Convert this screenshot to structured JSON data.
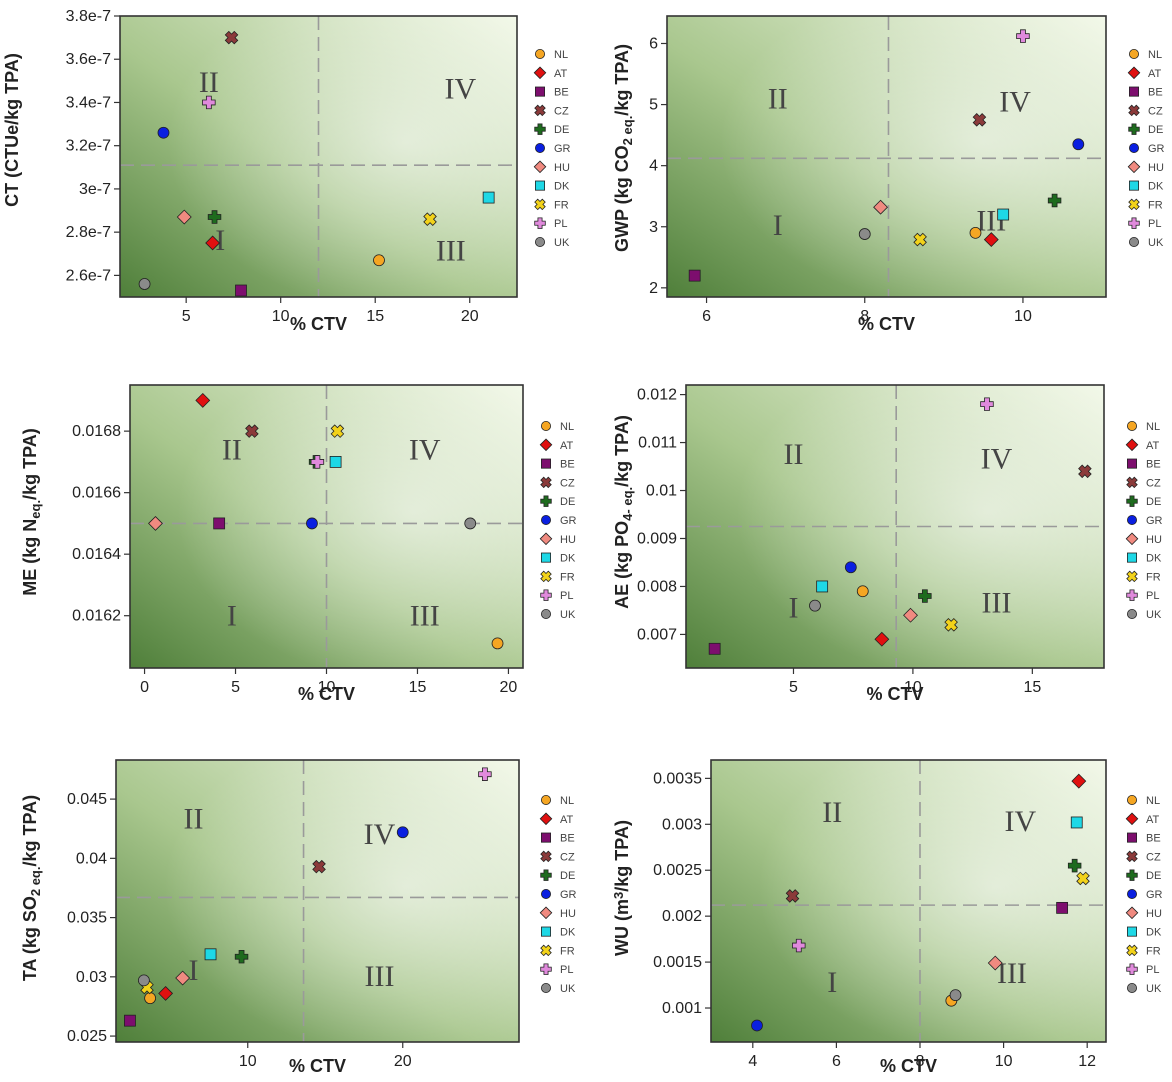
{
  "legend": [
    {
      "code": "NL",
      "color": "#F5A623",
      "shape": "circle"
    },
    {
      "code": "AT",
      "color": "#E01010",
      "shape": "diamond"
    },
    {
      "code": "BE",
      "color": "#7D0E6E",
      "shape": "square"
    },
    {
      "code": "CZ",
      "color": "#8B3A3A",
      "shape": "xcross"
    },
    {
      "code": "DE",
      "color": "#1E6B1E",
      "shape": "plus"
    },
    {
      "code": "GR",
      "color": "#0A1FE0",
      "shape": "circle"
    },
    {
      "code": "HU",
      "color": "#F08A80",
      "shape": "diamond"
    },
    {
      "code": "DK",
      "color": "#1ED8E6",
      "shape": "square"
    },
    {
      "code": "FR",
      "color": "#F2D21A",
      "shape": "xcross"
    },
    {
      "code": "PL",
      "color": "#E08ADC",
      "shape": "plus"
    },
    {
      "code": "UK",
      "color": "#8A8A8A",
      "shape": "circle"
    }
  ],
  "chart_data": [
    {
      "type": "scatter",
      "xlabel": "% CTV",
      "ylabel": "CT (CTUe/kg TPA)",
      "xlim": [
        1.5,
        22.5
      ],
      "ylim": [
        2.5e-07,
        3.8e-07
      ],
      "xticks": [
        5,
        10,
        15,
        20
      ],
      "xtick_labels": [
        "5",
        "10",
        "15",
        "20"
      ],
      "yticks": [
        2.6e-07,
        2.8e-07,
        3e-07,
        3.2e-07,
        3.4e-07,
        3.6e-07,
        3.8e-07
      ],
      "ytick_labels": [
        "2.6e-7",
        "2.8e-7",
        "3e-7",
        "3.2e-7",
        "3.4e-7",
        "3.6e-7",
        "3.8e-7"
      ],
      "vline": 12.0,
      "hline": 3.11e-07,
      "quadrant_labels": [
        {
          "text": "II",
          "x": 6.2,
          "y": 3.48e-07
        },
        {
          "text": "IV",
          "x": 19.5,
          "y": 3.45e-07
        },
        {
          "text": "I",
          "x": 6.8,
          "y": 2.75e-07
        },
        {
          "text": "III",
          "x": 19.0,
          "y": 2.7e-07
        }
      ],
      "points": [
        {
          "code": "NL",
          "x": 15.2,
          "y": 2.67e-07
        },
        {
          "code": "AT",
          "x": 6.4,
          "y": 2.75e-07
        },
        {
          "code": "BE",
          "x": 7.9,
          "y": 2.53e-07
        },
        {
          "code": "CZ",
          "x": 7.4,
          "y": 3.7e-07
        },
        {
          "code": "DE",
          "x": 6.5,
          "y": 2.87e-07
        },
        {
          "code": "GR",
          "x": 3.8,
          "y": 3.26e-07
        },
        {
          "code": "HU",
          "x": 4.9,
          "y": 2.87e-07
        },
        {
          "code": "DK",
          "x": 21.0,
          "y": 2.96e-07
        },
        {
          "code": "FR",
          "x": 17.9,
          "y": 2.86e-07
        },
        {
          "code": "PL",
          "x": 6.2,
          "y": 3.4e-07
        },
        {
          "code": "UK",
          "x": 2.8,
          "y": 2.56e-07
        }
      ]
    },
    {
      "type": "scatter",
      "xlabel": "% CTV",
      "ylabel": "GWP (kg CO2 eq./kg TPA)",
      "xlim": [
        5.5,
        11.05
      ],
      "ylim": [
        1.85,
        6.45
      ],
      "xticks": [
        6,
        8,
        10
      ],
      "xtick_labels": [
        "6",
        "8",
        "10"
      ],
      "yticks": [
        2,
        3,
        4,
        5,
        6
      ],
      "ytick_labels": [
        "2",
        "3",
        "4",
        "5",
        "6"
      ],
      "vline": 8.3,
      "hline": 4.12,
      "quadrant_labels": [
        {
          "text": "II",
          "x": 6.9,
          "y": 5.05
        },
        {
          "text": "IV",
          "x": 9.9,
          "y": 5.0
        },
        {
          "text": "I",
          "x": 6.9,
          "y": 2.98
        },
        {
          "text": "III",
          "x": 9.6,
          "y": 3.05
        }
      ],
      "points": [
        {
          "code": "NL",
          "x": 9.4,
          "y": 2.9
        },
        {
          "code": "AT",
          "x": 9.6,
          "y": 2.79
        },
        {
          "code": "BE",
          "x": 5.85,
          "y": 2.2
        },
        {
          "code": "CZ",
          "x": 9.45,
          "y": 4.75
        },
        {
          "code": "DE",
          "x": 10.4,
          "y": 3.43
        },
        {
          "code": "GR",
          "x": 10.7,
          "y": 4.35
        },
        {
          "code": "HU",
          "x": 8.2,
          "y": 3.32
        },
        {
          "code": "DK",
          "x": 9.75,
          "y": 3.2
        },
        {
          "code": "FR",
          "x": 8.7,
          "y": 2.79
        },
        {
          "code": "PL",
          "x": 10.0,
          "y": 6.12
        },
        {
          "code": "UK",
          "x": 8.0,
          "y": 2.88
        }
      ]
    },
    {
      "type": "scatter",
      "xlabel": "% CTV",
      "ylabel": "ME (kg N eq./kg TPA)",
      "xlim": [
        -0.8,
        20.8
      ],
      "ylim": [
        0.01603,
        0.01695
      ],
      "xticks": [
        0,
        5,
        10,
        15,
        20
      ],
      "xtick_labels": [
        "0",
        "5",
        "10",
        "15",
        "20"
      ],
      "yticks": [
        0.0162,
        0.0164,
        0.0166,
        0.0168
      ],
      "ytick_labels": [
        "0.0162",
        "0.0164",
        "0.0166",
        "0.0168"
      ],
      "vline": 10.0,
      "hline": 0.0165,
      "quadrant_labels": [
        {
          "text": "II",
          "x": 4.8,
          "y": 0.01673
        },
        {
          "text": "IV",
          "x": 15.4,
          "y": 0.01673
        },
        {
          "text": "I",
          "x": 4.8,
          "y": 0.01619
        },
        {
          "text": "III",
          "x": 15.4,
          "y": 0.01619
        }
      ],
      "points": [
        {
          "code": "NL",
          "x": 19.4,
          "y": 0.01611
        },
        {
          "code": "AT",
          "x": 3.2,
          "y": 0.0169
        },
        {
          "code": "BE",
          "x": 4.1,
          "y": 0.0165
        },
        {
          "code": "CZ",
          "x": 5.9,
          "y": 0.0168
        },
        {
          "code": "DE",
          "x": 9.4,
          "y": 0.0167
        },
        {
          "code": "GR",
          "x": 9.2,
          "y": 0.0165
        },
        {
          "code": "HU",
          "x": 0.6,
          "y": 0.0165
        },
        {
          "code": "DK",
          "x": 10.5,
          "y": 0.0167
        },
        {
          "code": "FR",
          "x": 10.6,
          "y": 0.0168
        },
        {
          "code": "PL",
          "x": 9.5,
          "y": 0.0167
        },
        {
          "code": "UK",
          "x": 17.9,
          "y": 0.0165
        }
      ]
    },
    {
      "type": "scatter",
      "xlabel": "% CTV",
      "ylabel": "AE (kg PO4- eq./kg TPA)",
      "xlim": [
        0.5,
        18.0
      ],
      "ylim": [
        0.0063,
        0.0122
      ],
      "xticks": [
        5,
        10,
        15
      ],
      "xtick_labels": [
        "5",
        "10",
        "15"
      ],
      "yticks": [
        0.007,
        0.008,
        0.009,
        0.01,
        0.011,
        0.012
      ],
      "ytick_labels": [
        "0.007",
        "0.008",
        "0.009",
        "0.01",
        "0.011",
        "0.012"
      ],
      "vline": 9.3,
      "hline": 0.00925,
      "quadrant_labels": [
        {
          "text": "II",
          "x": 5.0,
          "y": 0.0107
        },
        {
          "text": "IV",
          "x": 13.5,
          "y": 0.0106
        },
        {
          "text": "I",
          "x": 5.0,
          "y": 0.0075
        },
        {
          "text": "III",
          "x": 13.5,
          "y": 0.0076
        }
      ],
      "points": [
        {
          "code": "NL",
          "x": 7.9,
          "y": 0.0079
        },
        {
          "code": "AT",
          "x": 8.7,
          "y": 0.0069
        },
        {
          "code": "BE",
          "x": 1.7,
          "y": 0.0067
        },
        {
          "code": "CZ",
          "x": 17.2,
          "y": 0.0104
        },
        {
          "code": "DE",
          "x": 10.5,
          "y": 0.0078
        },
        {
          "code": "GR",
          "x": 7.4,
          "y": 0.0084
        },
        {
          "code": "HU",
          "x": 9.9,
          "y": 0.0074
        },
        {
          "code": "DK",
          "x": 6.2,
          "y": 0.008
        },
        {
          "code": "FR",
          "x": 11.6,
          "y": 0.0072
        },
        {
          "code": "PL",
          "x": 13.1,
          "y": 0.0118
        },
        {
          "code": "UK",
          "x": 5.9,
          "y": 0.0076
        }
      ]
    },
    {
      "type": "scatter",
      "xlabel": "% CTV",
      "ylabel": "TA (kg SO2 eq./kg TPA)",
      "xlim": [
        1.5,
        27.5
      ],
      "ylim": [
        0.0245,
        0.0483
      ],
      "xticks": [
        10,
        20
      ],
      "xtick_labels": [
        "10",
        "20"
      ],
      "yticks": [
        0.025,
        0.03,
        0.035,
        0.04,
        0.045
      ],
      "ytick_labels": [
        "0.025",
        "0.03",
        "0.035",
        "0.04",
        "0.045"
      ],
      "vline": 13.6,
      "hline": 0.0367,
      "quadrant_labels": [
        {
          "text": "II",
          "x": 6.5,
          "y": 0.0431
        },
        {
          "text": "IV",
          "x": 18.5,
          "y": 0.0418
        },
        {
          "text": "I",
          "x": 6.5,
          "y": 0.0303
        },
        {
          "text": "III",
          "x": 18.5,
          "y": 0.0298
        }
      ],
      "points": [
        {
          "code": "NL",
          "x": 3.7,
          "y": 0.0282
        },
        {
          "code": "AT",
          "x": 4.7,
          "y": 0.0286
        },
        {
          "code": "BE",
          "x": 2.4,
          "y": 0.0263
        },
        {
          "code": "CZ",
          "x": 14.6,
          "y": 0.0393
        },
        {
          "code": "DE",
          "x": 9.6,
          "y": 0.0317
        },
        {
          "code": "GR",
          "x": 20.0,
          "y": 0.0422
        },
        {
          "code": "HU",
          "x": 5.8,
          "y": 0.0299
        },
        {
          "code": "DK",
          "x": 7.6,
          "y": 0.0319
        },
        {
          "code": "FR",
          "x": 3.5,
          "y": 0.0291
        },
        {
          "code": "PL",
          "x": 25.3,
          "y": 0.0471
        },
        {
          "code": "UK",
          "x": 3.3,
          "y": 0.0297
        }
      ]
    },
    {
      "type": "scatter",
      "xlabel": "% CTV",
      "ylabel": "WU (m3/kg TPA)",
      "xlim": [
        3.0,
        12.45
      ],
      "ylim": [
        0.00063,
        0.0037
      ],
      "xticks": [
        4,
        6,
        8,
        10,
        12
      ],
      "xtick_labels": [
        "4",
        "6",
        "8",
        "10",
        "12"
      ],
      "yticks": [
        0.001,
        0.0015,
        0.002,
        0.0025,
        0.003,
        0.0035
      ],
      "ytick_labels": [
        "0.001",
        "0.0015",
        "0.002",
        "0.0025",
        "0.003",
        "0.0035"
      ],
      "vline": 8.0,
      "hline": 0.00212,
      "quadrant_labels": [
        {
          "text": "II",
          "x": 5.9,
          "y": 0.0031
        },
        {
          "text": "IV",
          "x": 10.4,
          "y": 0.003
        },
        {
          "text": "I",
          "x": 5.9,
          "y": 0.00125
        },
        {
          "text": "III",
          "x": 10.2,
          "y": 0.00135
        }
      ],
      "points": [
        {
          "code": "NL",
          "x": 8.75,
          "y": 0.00108
        },
        {
          "code": "AT",
          "x": 11.8,
          "y": 0.00347
        },
        {
          "code": "BE",
          "x": 11.4,
          "y": 0.00209
        },
        {
          "code": "CZ",
          "x": 4.95,
          "y": 0.00222
        },
        {
          "code": "DE",
          "x": 11.7,
          "y": 0.00255
        },
        {
          "code": "GR",
          "x": 4.1,
          "y": 0.00081
        },
        {
          "code": "HU",
          "x": 9.8,
          "y": 0.00149
        },
        {
          "code": "DK",
          "x": 11.75,
          "y": 0.00302
        },
        {
          "code": "FR",
          "x": 11.9,
          "y": 0.00241
        },
        {
          "code": "PL",
          "x": 5.1,
          "y": 0.00168
        },
        {
          "code": "UK",
          "x": 8.85,
          "y": 0.00114
        }
      ]
    }
  ]
}
